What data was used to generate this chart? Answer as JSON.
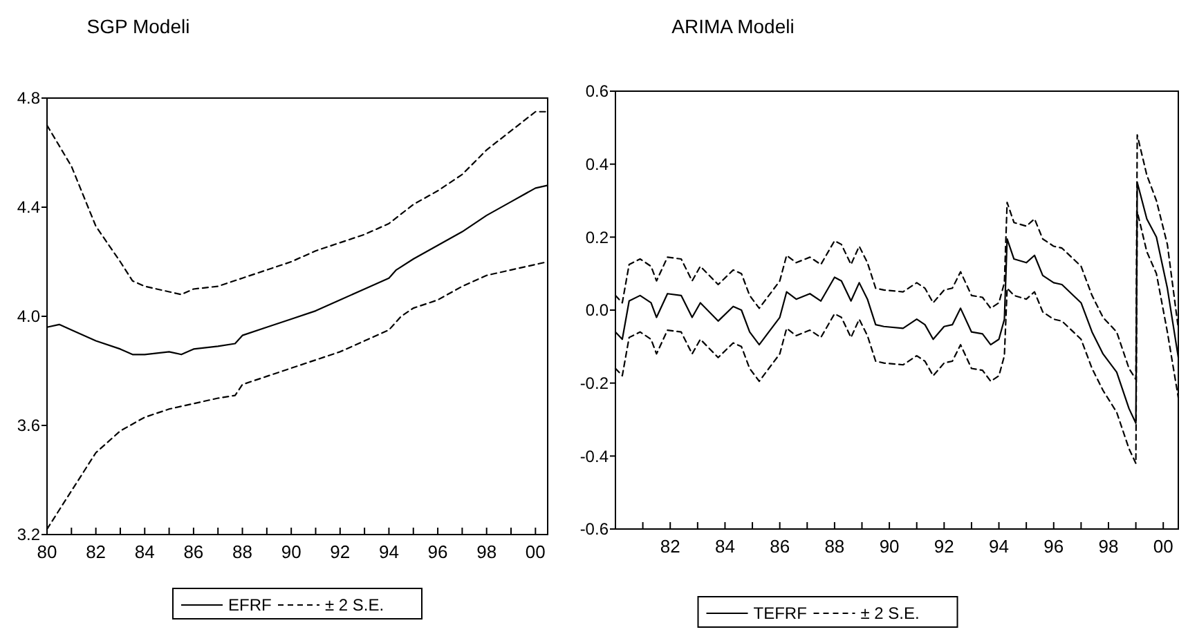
{
  "chart_data": [
    {
      "type": "line",
      "title": "SGP Modeli",
      "xlim": [
        1980,
        2000.5
      ],
      "ylim": [
        3.2,
        4.8
      ],
      "yticks": [
        3.2,
        3.6,
        {
          "value": 4,
          "label": "4.0"
        },
        4.4,
        4.8
      ],
      "xticks": [
        {
          "value": 1980,
          "label": "80"
        },
        {
          "value": 1981,
          "label": null
        },
        {
          "value": 1982,
          "label": "82"
        },
        {
          "value": 1983,
          "label": null
        },
        {
          "value": 1984,
          "label": "84"
        },
        {
          "value": 1985,
          "label": null
        },
        {
          "value": 1986,
          "label": "86"
        },
        {
          "value": 1987,
          "label": null
        },
        {
          "value": 1988,
          "label": "88"
        },
        {
          "value": 1989,
          "label": null
        },
        {
          "value": 1990,
          "label": "90"
        },
        {
          "value": 1991,
          "label": null
        },
        {
          "value": 1992,
          "label": "92"
        },
        {
          "value": 1993,
          "label": null
        },
        {
          "value": 1994,
          "label": "94"
        },
        {
          "value": 1995,
          "label": null
        },
        {
          "value": 1996,
          "label": "96"
        },
        {
          "value": 1997,
          "label": null
        },
        {
          "value": 1998,
          "label": "98"
        },
        {
          "value": 1999,
          "label": null
        },
        {
          "value": 2000,
          "label": "00"
        }
      ],
      "legend": "bottom",
      "grid": false,
      "series": [
        {
          "name": "EFRF",
          "color": "#000000",
          "line_style": "solid",
          "x": [
            1980,
            1980.5,
            1981,
            1982,
            1983,
            1983.5,
            1984,
            1985,
            1985.5,
            1986,
            1987,
            1987.7,
            1988,
            1989,
            1990,
            1991,
            1992,
            1993,
            1994,
            1994.3,
            1995,
            1996,
            1997,
            1998,
            1999,
            2000,
            2000.5
          ],
          "values": [
            3.96,
            3.97,
            3.95,
            3.91,
            3.88,
            3.86,
            3.86,
            3.87,
            3.86,
            3.88,
            3.89,
            3.9,
            3.93,
            3.96,
            3.99,
            4.02,
            4.06,
            4.1,
            4.14,
            4.17,
            4.21,
            4.26,
            4.31,
            4.37,
            4.42,
            4.47,
            4.48
          ]
        },
        {
          "name": "± 2 S.E.",
          "color": "#000000",
          "line_style": "dashed",
          "x": [
            1980,
            1981,
            1982,
            1983,
            1983.5,
            1984,
            1985,
            1985.5,
            1986,
            1987,
            1988,
            1989,
            1990,
            1991,
            1992,
            1993,
            1994,
            1995,
            1996,
            1997,
            1998,
            1999,
            2000,
            2000.5
          ],
          "values": [
            4.7,
            4.55,
            4.33,
            4.2,
            4.13,
            4.11,
            4.09,
            4.08,
            4.1,
            4.11,
            4.14,
            4.17,
            4.2,
            4.24,
            4.27,
            4.3,
            4.34,
            4.41,
            4.46,
            4.52,
            4.61,
            4.68,
            4.75,
            4.75
          ]
        },
        {
          "color": "#000000",
          "line_style": "dashed",
          "x": [
            1980,
            1981,
            1982,
            1983,
            1984,
            1985,
            1986,
            1987,
            1987.7,
            1988,
            1989,
            1990,
            1991,
            1992,
            1993,
            1994,
            1994.5,
            1995,
            1996,
            1997,
            1998,
            1999,
            2000,
            2000.5
          ],
          "values": [
            3.22,
            3.36,
            3.5,
            3.58,
            3.63,
            3.66,
            3.68,
            3.7,
            3.71,
            3.75,
            3.78,
            3.81,
            3.84,
            3.87,
            3.91,
            3.95,
            4.0,
            4.03,
            4.06,
            4.11,
            4.15,
            4.17,
            4.19,
            4.2
          ]
        }
      ]
    },
    {
      "type": "line",
      "title": "ARIMA Modeli",
      "xlim": [
        1980,
        2000.55
      ],
      "ylim": [
        -0.6,
        0.6
      ],
      "yticks": [
        -0.6,
        -0.4,
        -0.2,
        {
          "value": 0,
          "label": "0.0"
        },
        0.2,
        0.4,
        0.6
      ],
      "xticks": [
        {
          "value": 1981,
          "label": null
        },
        {
          "value": 1982,
          "label": "82"
        },
        {
          "value": 1983,
          "label": null
        },
        {
          "value": 1984,
          "label": "84"
        },
        {
          "value": 1985,
          "label": null
        },
        {
          "value": 1986,
          "label": "86"
        },
        {
          "value": 1987,
          "label": null
        },
        {
          "value": 1988,
          "label": "88"
        },
        {
          "value": 1989,
          "label": null
        },
        {
          "value": 1990,
          "label": "90"
        },
        {
          "value": 1991,
          "label": null
        },
        {
          "value": 1992,
          "label": "92"
        },
        {
          "value": 1993,
          "label": null
        },
        {
          "value": 1994,
          "label": "94"
        },
        {
          "value": 1995,
          "label": null
        },
        {
          "value": 1996,
          "label": "96"
        },
        {
          "value": 1997,
          "label": null
        },
        {
          "value": 1998,
          "label": "98"
        },
        {
          "value": 1999,
          "label": null
        },
        {
          "value": 2000,
          "label": "00"
        }
      ],
      "legend": "bottom",
      "grid": false,
      "x": [
        1980,
        1980.25,
        1980.5,
        1980.9,
        1981.3,
        1981.5,
        1981.9,
        1982.4,
        1982.8,
        1983.1,
        1983.75,
        1984.3,
        1984.6,
        1984.9,
        1985.25,
        1985.6,
        1986,
        1986.25,
        1986.6,
        1987.1,
        1987.5,
        1988,
        1988.25,
        1988.6,
        1988.9,
        1989.2,
        1989.5,
        1989.8,
        1990.5,
        1991,
        1991.3,
        1991.6,
        1992,
        1992.3,
        1992.6,
        1993,
        1993.4,
        1993.7,
        1994,
        1994.2,
        1994.3,
        1994.55,
        1995,
        1995.3,
        1995.6,
        1996,
        1996.3,
        1997,
        1997.4,
        1997.8,
        1998.3,
        1998.75,
        1999,
        1999.05,
        1999.4,
        1999.75,
        2000.15,
        2000.55
      ],
      "series": [
        {
          "name": "TEFRF",
          "color": "#000000",
          "line_style": "solid",
          "values": [
            -0.06,
            -0.08,
            0.025,
            0.04,
            0.02,
            -0.02,
            0.045,
            0.04,
            -0.02,
            0.02,
            -0.03,
            0.01,
            0,
            -0.06,
            -0.095,
            -0.06,
            -0.02,
            0.05,
            0.03,
            0.045,
            0.025,
            0.09,
            0.08,
            0.025,
            0.075,
            0.03,
            -0.04,
            -0.045,
            -0.05,
            -0.025,
            -0.04,
            -0.08,
            -0.045,
            -0.04,
            0.005,
            -0.06,
            -0.065,
            -0.095,
            -0.08,
            -0.025,
            0.195,
            0.14,
            0.13,
            0.15,
            0.095,
            0.075,
            0.07,
            0.02,
            -0.06,
            -0.12,
            -0.17,
            -0.27,
            -0.31,
            0.35,
            0.25,
            0.2,
            0.06,
            -0.13
          ]
        },
        {
          "name": "± 2 S.E.",
          "color": "#000000",
          "line_style": "dashed",
          "values": [
            0.04,
            0.02,
            0.125,
            0.14,
            0.12,
            0.08,
            0.145,
            0.14,
            0.08,
            0.12,
            0.07,
            0.11,
            0.1,
            0.04,
            0.005,
            0.04,
            0.08,
            0.15,
            0.13,
            0.145,
            0.125,
            0.19,
            0.18,
            0.125,
            0.175,
            0.13,
            0.06,
            0.055,
            0.05,
            0.075,
            0.06,
            0.02,
            0.055,
            0.06,
            0.105,
            0.04,
            0.035,
            0.005,
            0.02,
            0.075,
            0.295,
            0.24,
            0.23,
            0.25,
            0.195,
            0.175,
            0.17,
            0.12,
            0.04,
            -0.02,
            -0.06,
            -0.16,
            -0.19,
            0.48,
            0.37,
            0.3,
            0.18,
            -0.05
          ]
        },
        {
          "color": "#000000",
          "line_style": "dashed",
          "values": [
            -0.16,
            -0.18,
            -0.075,
            -0.06,
            -0.08,
            -0.12,
            -0.055,
            -0.06,
            -0.12,
            -0.08,
            -0.13,
            -0.09,
            -0.1,
            -0.16,
            -0.195,
            -0.16,
            -0.12,
            -0.05,
            -0.07,
            -0.055,
            -0.075,
            -0.01,
            -0.02,
            -0.075,
            -0.025,
            -0.07,
            -0.14,
            -0.145,
            -0.15,
            -0.125,
            -0.14,
            -0.18,
            -0.145,
            -0.14,
            -0.095,
            -0.16,
            -0.165,
            -0.195,
            -0.18,
            -0.125,
            0.06,
            0.04,
            0.03,
            0.05,
            -0.005,
            -0.025,
            -0.03,
            -0.08,
            -0.16,
            -0.22,
            -0.28,
            -0.38,
            -0.42,
            0.27,
            0.16,
            0.1,
            -0.06,
            -0.24
          ]
        }
      ]
    }
  ]
}
